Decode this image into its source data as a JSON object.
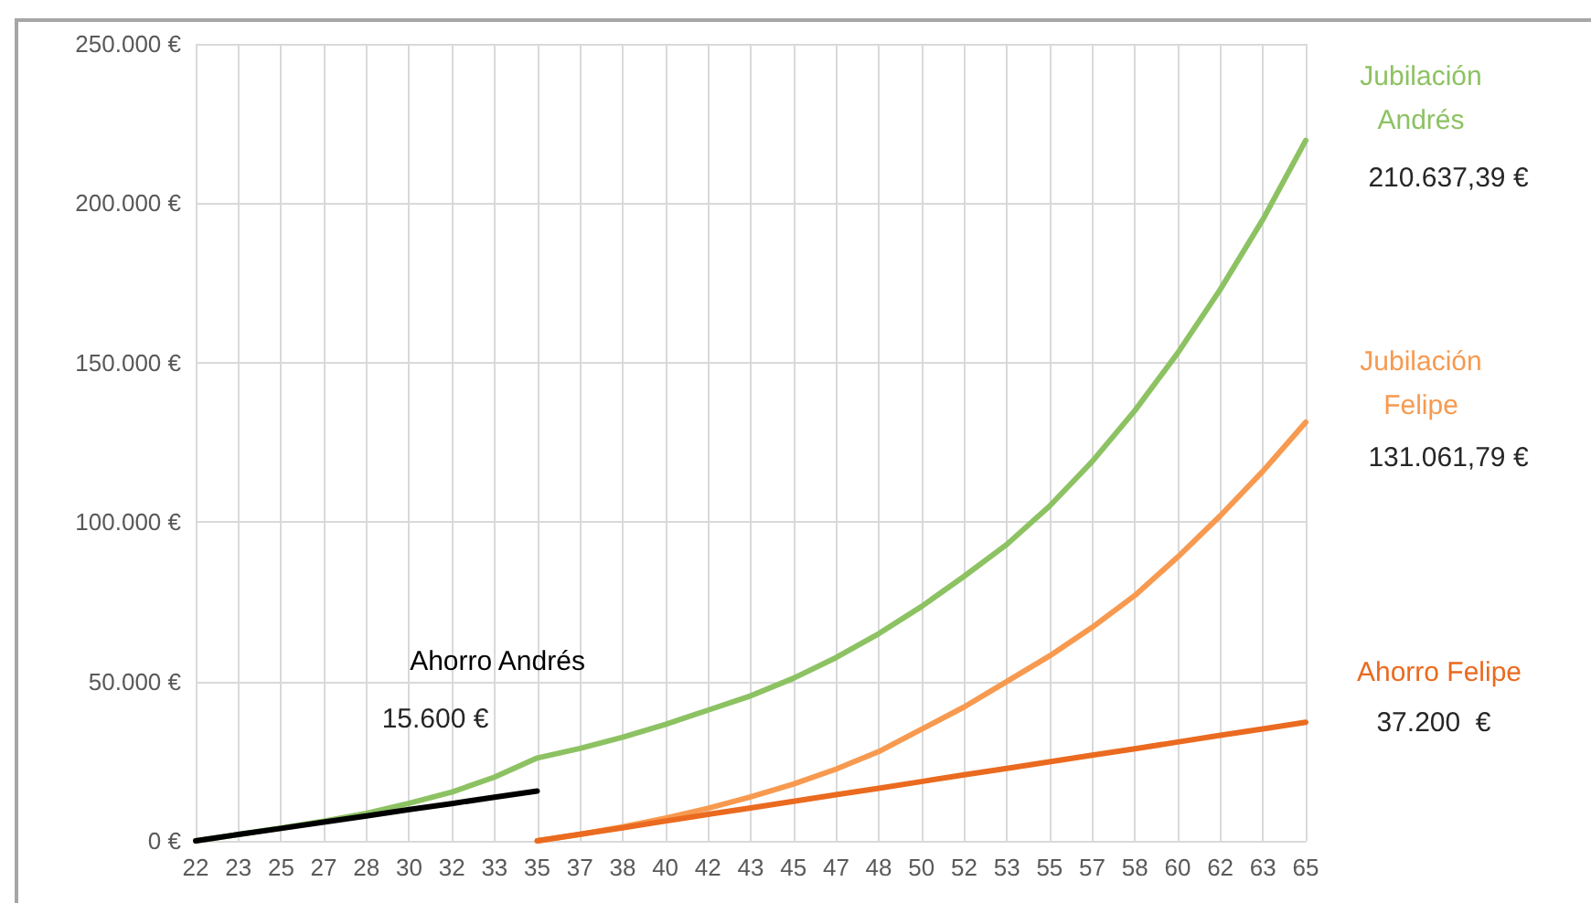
{
  "chart_data": {
    "type": "line",
    "categories": [
      "22",
      "23",
      "25",
      "27",
      "28",
      "30",
      "32",
      "33",
      "35",
      "37",
      "38",
      "40",
      "42",
      "43",
      "45",
      "47",
      "48",
      "50",
      "52",
      "53",
      "55",
      "57",
      "58",
      "60",
      "62",
      "63",
      "65"
    ],
    "series": [
      {
        "name": "Jubilación Andrés",
        "color": "#8dc263",
        "values": [
          0,
          2000,
          4000,
          6200,
          8600,
          11800,
          15300,
          20000,
          26000,
          29000,
          32500,
          36500,
          41000,
          45500,
          51000,
          57500,
          65000,
          73500,
          83000,
          93000,
          105000,
          119000,
          135000,
          153000,
          173000,
          195000,
          219700
        ]
      },
      {
        "name": "Jubilación Felipe",
        "color": "#f79a50",
        "values": [
          null,
          null,
          null,
          null,
          null,
          null,
          null,
          null,
          0,
          2000,
          4400,
          7100,
          10200,
          13800,
          17800,
          22500,
          28000,
          35000,
          42000,
          50000,
          58000,
          67000,
          77000,
          89000,
          102000,
          116000,
          131300
        ]
      },
      {
        "name": "Ahorro Felipe",
        "color": "#ea6a1f",
        "values": [
          null,
          null,
          null,
          null,
          null,
          null,
          null,
          null,
          0,
          2100,
          4100,
          6200,
          8300,
          10300,
          12400,
          14500,
          16500,
          18600,
          20700,
          22700,
          24800,
          26900,
          28900,
          31000,
          33100,
          35100,
          37200
        ]
      },
      {
        "name": "Ahorro Andrés",
        "color": "#000000",
        "values": [
          0,
          2000,
          3900,
          5900,
          7800,
          9800,
          11700,
          13700,
          15600,
          null,
          null,
          null,
          null,
          null,
          null,
          null,
          null,
          null,
          null,
          null,
          null,
          null,
          null,
          null,
          null,
          null,
          null
        ]
      }
    ],
    "annotations": [
      "210.637,39 €",
      "131.061,79 €",
      "37.200  €",
      "15.600 €"
    ],
    "ylim": [
      0,
      250000
    ],
    "yticks": [
      {
        "value": 0,
        "label": "0 €"
      },
      {
        "value": 50000,
        "label": "50.000 €"
      },
      {
        "value": 100000,
        "label": "100.000 €"
      },
      {
        "value": 150000,
        "label": "150.000 €"
      },
      {
        "value": 200000,
        "label": "200.000 €"
      },
      {
        "value": 250000,
        "label": "250.000 €"
      }
    ],
    "grid": true,
    "marker": "none",
    "line_style": "solid"
  }
}
